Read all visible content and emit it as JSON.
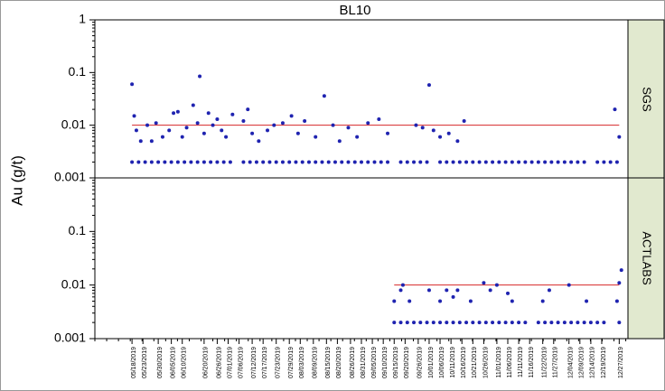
{
  "chart_data": [
    {
      "type": "scatter",
      "title": "BL10",
      "y_label": "Au (g/t)",
      "panel": "SGS",
      "log_y": true,
      "color": "#1f23b0",
      "ylim": [
        0.001,
        1
      ],
      "yticks": [
        0.001,
        0.01,
        0.1,
        1
      ],
      "xlim": [
        "05/01/2019",
        "12/31/2019"
      ],
      "xticks": [
        "05/18/2019",
        "05/23/2019",
        "05/30/2019",
        "06/05/2019",
        "06/10/2019",
        "06/20/2019",
        "06/26/2019",
        "07/01/2019",
        "07/06/2019",
        "07/12/2019",
        "07/17/2019",
        "07/23/2019",
        "07/29/2019",
        "08/03/2019",
        "08/09/2019",
        "08/15/2019",
        "08/20/2019",
        "08/26/2019",
        "08/31/2019",
        "09/05/2019",
        "09/10/2019",
        "09/15/2019",
        "09/20/2019",
        "09/26/2019",
        "10/01/2019",
        "10/06/2019",
        "10/11/2019",
        "10/16/2019",
        "10/21/2019",
        "10/26/2019",
        "11/01/2019",
        "11/06/2019",
        "11/11/2019",
        "11/16/2019",
        "11/22/2019",
        "11/27/2019",
        "12/04/2019",
        "12/09/2019",
        "12/14/2019",
        "12/19/2019",
        "12/27/2019"
      ],
      "reference_line": {
        "value": 0.01,
        "color": "#d62728",
        "x": [
          "05/18/2019",
          "12/27/2019"
        ]
      },
      "x": [
        "05/18/2019",
        "05/21/2019",
        "05/24/2019",
        "05/27/2019",
        "05/30/2019",
        "06/02/2019",
        "06/05/2019",
        "06/08/2019",
        "06/11/2019",
        "06/14/2019",
        "06/17/2019",
        "06/20/2019",
        "06/23/2019",
        "06/26/2019",
        "06/29/2019",
        "07/02/2019",
        "07/08/2019",
        "07/11/2019",
        "07/14/2019",
        "07/17/2019",
        "07/20/2019",
        "07/23/2019",
        "07/26/2019",
        "07/29/2019",
        "08/01/2019",
        "08/04/2019",
        "08/07/2019",
        "08/10/2019",
        "08/13/2019",
        "08/16/2019",
        "08/19/2019",
        "08/22/2019",
        "08/25/2019",
        "08/28/2019",
        "08/31/2019",
        "09/03/2019",
        "09/06/2019",
        "09/09/2019",
        "09/12/2019",
        "09/18/2019",
        "09/21/2019",
        "09/24/2019",
        "09/27/2019",
        "09/30/2019",
        "10/06/2019",
        "10/09/2019",
        "10/12/2019",
        "10/15/2019",
        "10/18/2019",
        "10/21/2019",
        "10/24/2019",
        "10/27/2019",
        "10/30/2019",
        "11/02/2019",
        "11/05/2019",
        "11/08/2019",
        "11/11/2019",
        "11/14/2019",
        "11/17/2019",
        "11/20/2019",
        "11/23/2019",
        "11/26/2019",
        "11/29/2019",
        "12/02/2019",
        "12/05/2019",
        "12/08/2019",
        "12/11/2019",
        "12/17/2019",
        "12/20/2019",
        "12/23/2019",
        "12/26/2019",
        "05/18/2019",
        "05/19/2019",
        "05/20/2019",
        "05/22/2019",
        "05/25/2019",
        "05/27/2019",
        "05/29/2019",
        "06/01/2019",
        "06/04/2019",
        "06/06/2019",
        "06/08/2019",
        "06/10/2019",
        "06/12/2019",
        "06/15/2019",
        "06/17/2019",
        "06/18/2019",
        "06/20/2019",
        "06/22/2019",
        "06/24/2019",
        "06/26/2019",
        "06/28/2019",
        "06/30/2019",
        "07/03/2019",
        "07/08/2019",
        "07/10/2019",
        "07/12/2019",
        "07/15/2019",
        "07/19/2019",
        "07/22/2019",
        "07/26/2019",
        "07/30/2019",
        "08/02/2019",
        "08/05/2019",
        "08/10/2019",
        "08/14/2019",
        "08/18/2019",
        "08/21/2019",
        "08/25/2019",
        "08/29/2019",
        "09/03/2019",
        "09/08/2019",
        "09/12/2019",
        "09/25/2019",
        "09/28/2019",
        "10/01/2019",
        "10/03/2019",
        "10/06/2019",
        "10/10/2019",
        "10/14/2019",
        "10/17/2019",
        "12/25/2019",
        "12/27/2019"
      ],
      "values": [
        0.002,
        0.002,
        0.002,
        0.002,
        0.002,
        0.002,
        0.002,
        0.002,
        0.002,
        0.002,
        0.002,
        0.002,
        0.002,
        0.002,
        0.002,
        0.002,
        0.002,
        0.002,
        0.002,
        0.002,
        0.002,
        0.002,
        0.002,
        0.002,
        0.002,
        0.002,
        0.002,
        0.002,
        0.002,
        0.002,
        0.002,
        0.002,
        0.002,
        0.002,
        0.002,
        0.002,
        0.002,
        0.002,
        0.002,
        0.002,
        0.002,
        0.002,
        0.002,
        0.002,
        0.002,
        0.002,
        0.002,
        0.002,
        0.002,
        0.002,
        0.002,
        0.002,
        0.002,
        0.002,
        0.002,
        0.002,
        0.002,
        0.002,
        0.002,
        0.002,
        0.002,
        0.002,
        0.002,
        0.002,
        0.002,
        0.002,
        0.002,
        0.002,
        0.002,
        0.002,
        0.002,
        0.06,
        0.015,
        0.008,
        0.005,
        0.01,
        0.005,
        0.011,
        0.006,
        0.008,
        0.017,
        0.018,
        0.006,
        0.009,
        0.024,
        0.011,
        0.085,
        0.007,
        0.017,
        0.01,
        0.013,
        0.008,
        0.006,
        0.016,
        0.012,
        0.02,
        0.007,
        0.005,
        0.008,
        0.01,
        0.011,
        0.015,
        0.007,
        0.012,
        0.006,
        0.036,
        0.01,
        0.005,
        0.009,
        0.006,
        0.011,
        0.013,
        0.007,
        0.01,
        0.009,
        0.058,
        0.008,
        0.006,
        0.007,
        0.005,
        0.012,
        0.02,
        0.006
      ]
    },
    {
      "type": "scatter",
      "panel": "ACTLABS",
      "log_y": true,
      "color": "#1f23b0",
      "ylim": [
        0.001,
        1
      ],
      "yticks": [
        0.001,
        0.01,
        0.1
      ],
      "xlim": [
        "05/01/2019",
        "12/31/2019"
      ],
      "reference_line": {
        "value": 0.01,
        "color": "#d62728",
        "x": [
          "09/15/2019",
          "12/27/2019"
        ]
      },
      "x": [
        "09/15/2019",
        "09/18/2019",
        "09/21/2019",
        "09/24/2019",
        "09/27/2019",
        "09/30/2019",
        "10/03/2019",
        "10/06/2019",
        "10/09/2019",
        "10/12/2019",
        "10/15/2019",
        "10/18/2019",
        "10/21/2019",
        "10/24/2019",
        "10/27/2019",
        "10/30/2019",
        "11/02/2019",
        "11/05/2019",
        "11/08/2019",
        "11/11/2019",
        "11/14/2019",
        "11/20/2019",
        "11/23/2019",
        "11/26/2019",
        "11/29/2019",
        "12/02/2019",
        "12/05/2019",
        "12/08/2019",
        "12/11/2019",
        "12/14/2019",
        "12/17/2019",
        "12/20/2019",
        "12/27/2019",
        "09/15/2019",
        "09/18/2019",
        "09/19/2019",
        "09/22/2019",
        "10/01/2019",
        "10/06/2019",
        "10/09/2019",
        "10/12/2019",
        "10/14/2019",
        "10/20/2019",
        "10/26/2019",
        "10/29/2019",
        "11/01/2019",
        "11/06/2019",
        "11/08/2019",
        "11/22/2019",
        "11/25/2019",
        "12/04/2019",
        "12/12/2019",
        "12/26/2019",
        "12/27/2019",
        "12/28/2019"
      ],
      "values": [
        0.002,
        0.002,
        0.002,
        0.002,
        0.002,
        0.002,
        0.002,
        0.002,
        0.002,
        0.002,
        0.002,
        0.002,
        0.002,
        0.002,
        0.002,
        0.002,
        0.002,
        0.002,
        0.002,
        0.002,
        0.002,
        0.002,
        0.002,
        0.002,
        0.002,
        0.002,
        0.002,
        0.002,
        0.002,
        0.002,
        0.002,
        0.002,
        0.002,
        0.005,
        0.008,
        0.01,
        0.005,
        0.008,
        0.005,
        0.008,
        0.006,
        0.008,
        0.005,
        0.011,
        0.008,
        0.01,
        0.007,
        0.005,
        0.005,
        0.008,
        0.01,
        0.005,
        0.005,
        0.011,
        0.019
      ]
    }
  ]
}
